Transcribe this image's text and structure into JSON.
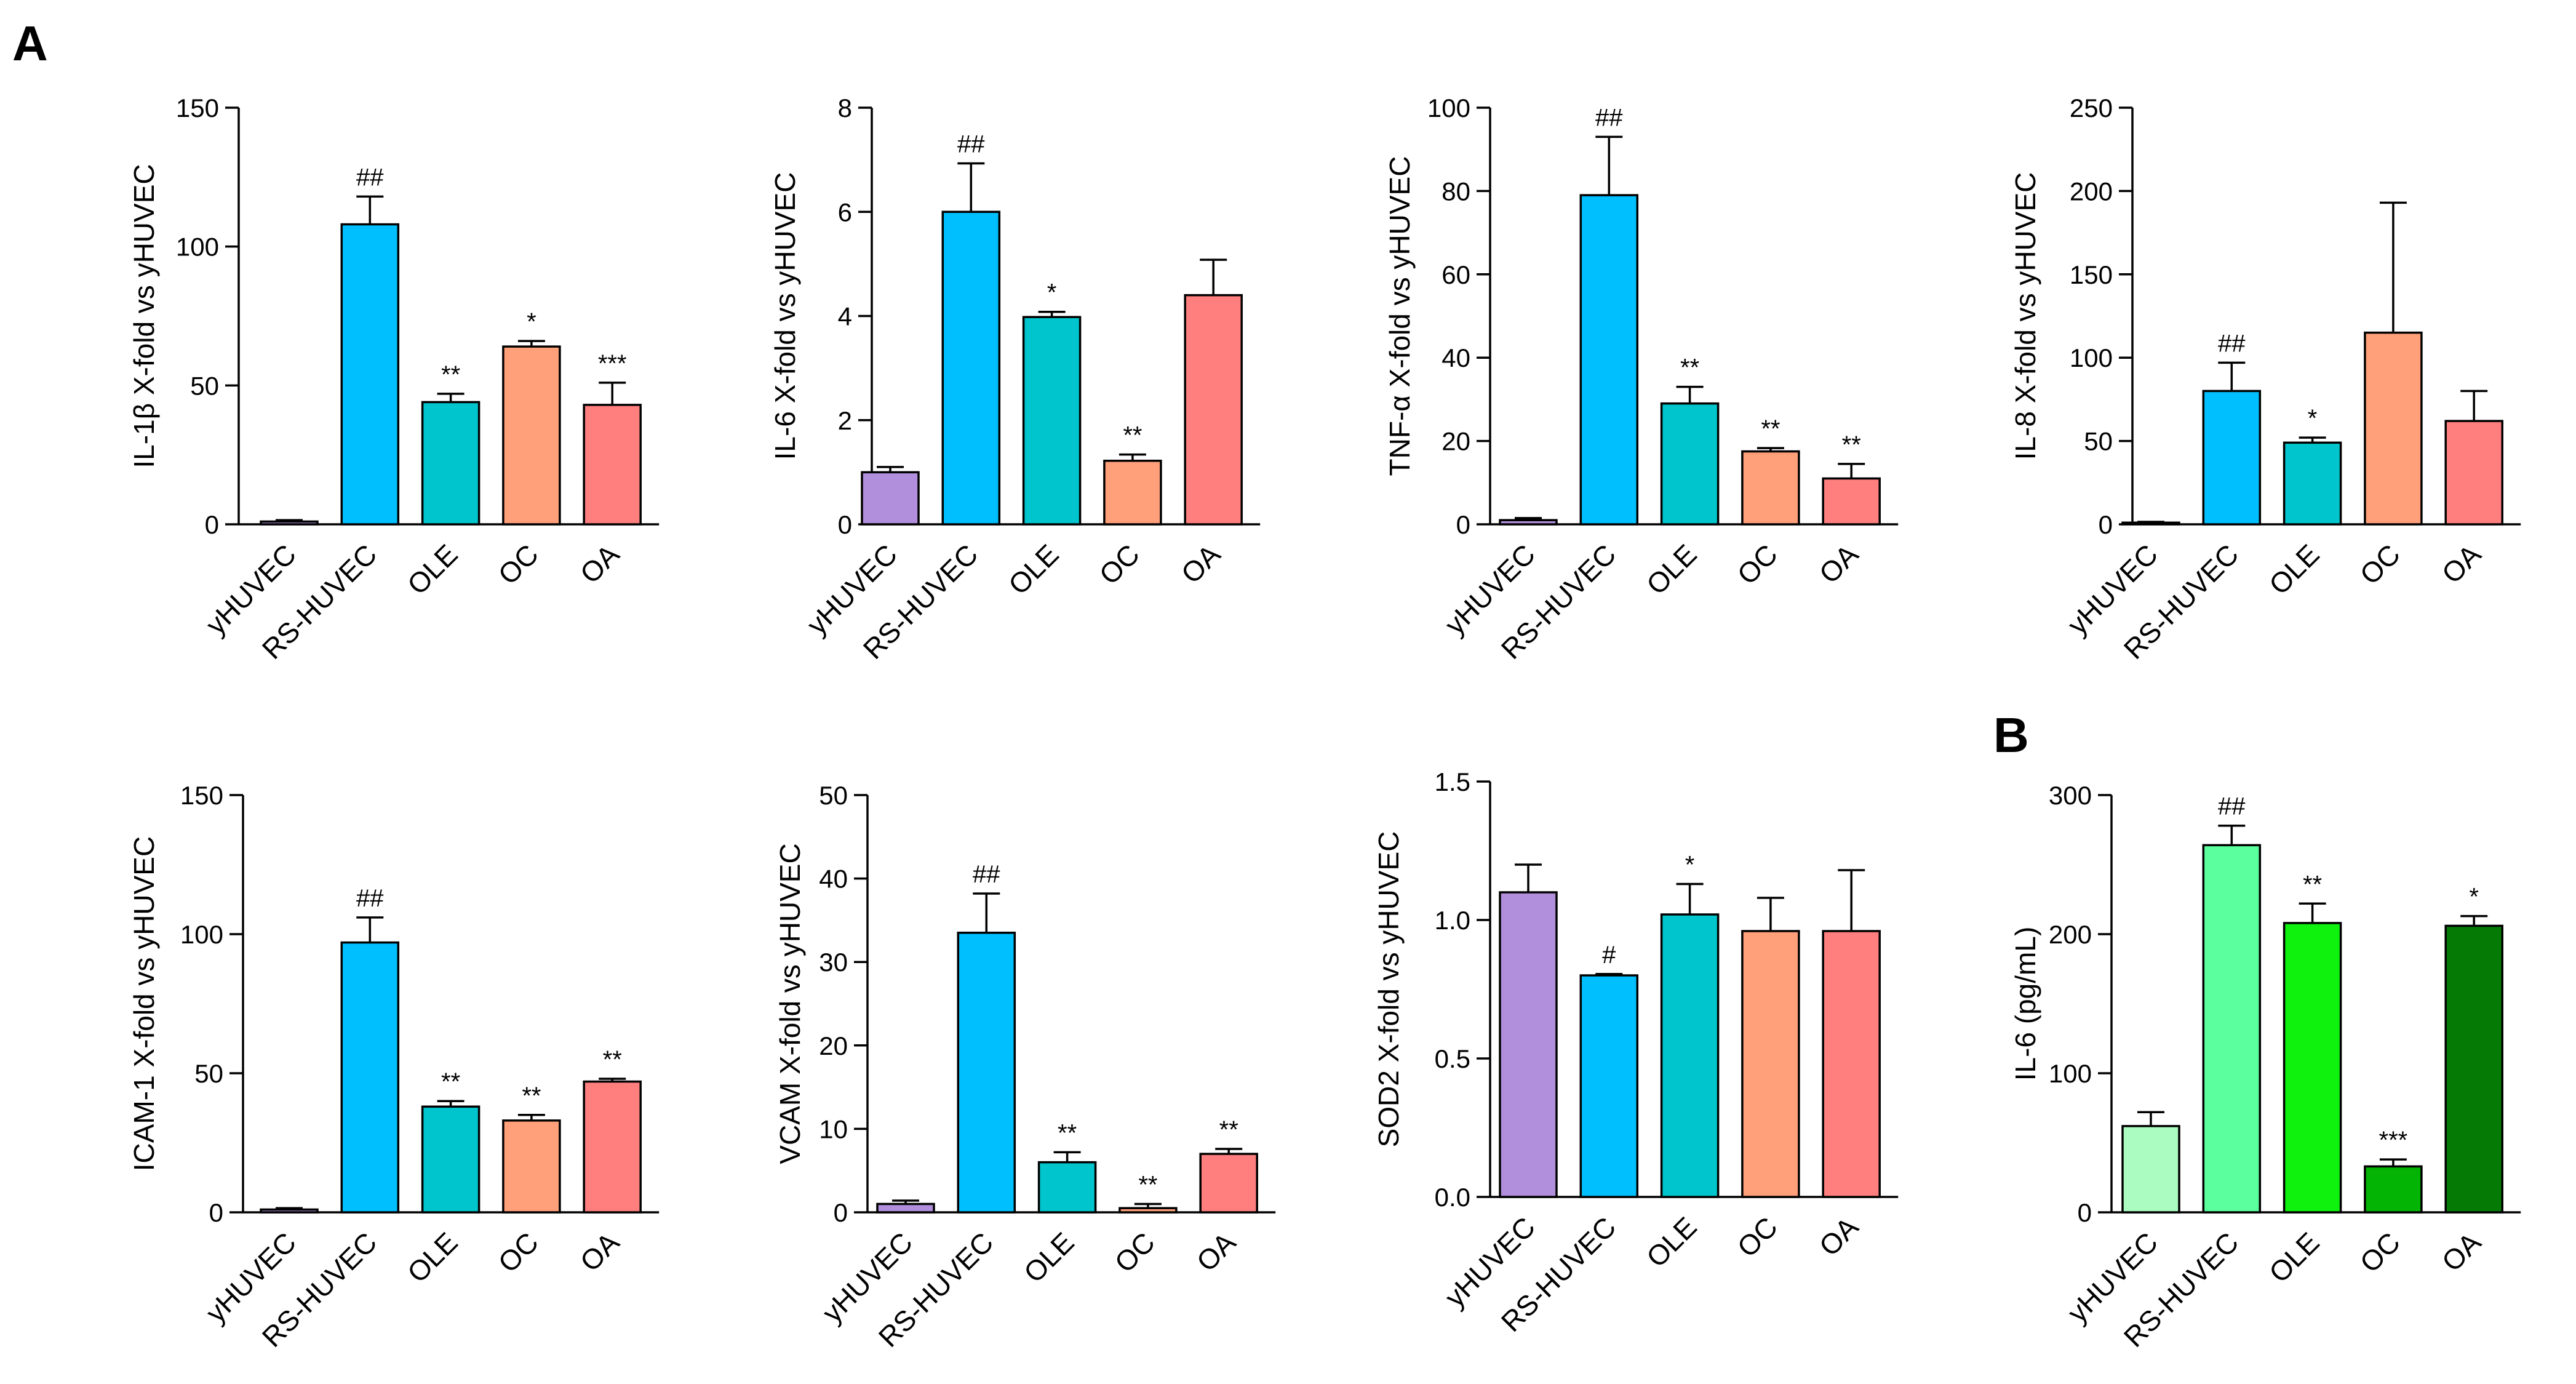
{
  "panel_labels": [
    "A",
    "B"
  ],
  "chart_data": [
    {
      "type": "bar",
      "panel": "A",
      "categories": [
        "yHUVEC",
        "RS-HUVEC",
        "OLE",
        "OC",
        "OA"
      ],
      "values": [
        1,
        108,
        44,
        64,
        43
      ],
      "errors": [
        0.5,
        10,
        3,
        2,
        8
      ],
      "significance": [
        "",
        "##",
        "**",
        "*",
        "***"
      ],
      "colors": [
        "#b18fdc",
        "#00bfff",
        "#00c5cd",
        "#ffa07a",
        "#ff7f7f"
      ],
      "ylabel": "IL-1β X-fold vs yHUVEC",
      "ylim": [
        0,
        150
      ],
      "yticks": [
        0,
        50,
        100,
        150
      ],
      "ytick_labels": [
        "0",
        "50",
        "100",
        "150"
      ]
    },
    {
      "type": "bar",
      "panel": "A",
      "categories": [
        "yHUVEC",
        "RS-HUVEC",
        "OLE",
        "OC",
        "OA"
      ],
      "values": [
        1.0,
        6.0,
        3.98,
        1.22,
        4.4
      ],
      "errors": [
        0.1,
        0.93,
        0.1,
        0.12,
        0.68
      ],
      "significance": [
        "",
        "##",
        "*",
        "**",
        ""
      ],
      "colors": [
        "#b18fdc",
        "#00bfff",
        "#00c5cd",
        "#ffa07a",
        "#ff7f7f"
      ],
      "ylabel": "IL-6 X-fold vs yHUVEC",
      "ylim": [
        0,
        8
      ],
      "yticks": [
        0,
        2,
        4,
        6,
        8
      ],
      "ytick_labels": [
        "0",
        "2",
        "4",
        "6",
        "8"
      ]
    },
    {
      "type": "bar",
      "panel": "A",
      "categories": [
        "yHUVEC",
        "RS-HUVEC",
        "OLE",
        "OC",
        "OA"
      ],
      "values": [
        1,
        79,
        29,
        17.5,
        11
      ],
      "errors": [
        0.5,
        14,
        4,
        0.8,
        3.5
      ],
      "significance": [
        "",
        "##",
        "**",
        "**",
        "**"
      ],
      "colors": [
        "#b18fdc",
        "#00bfff",
        "#00c5cd",
        "#ffa07a",
        "#ff7f7f"
      ],
      "ylabel": "TNF-α X-fold vs yHUVEC",
      "ylim": [
        0,
        100
      ],
      "yticks": [
        0,
        20,
        40,
        60,
        80,
        100
      ],
      "ytick_labels": [
        "0",
        "20",
        "40",
        "60",
        "80",
        "100"
      ]
    },
    {
      "type": "bar",
      "panel": "A",
      "categories": [
        "yHUVEC",
        "RS-HUVEC",
        "OLE",
        "OC",
        "OA"
      ],
      "values": [
        1,
        80,
        49,
        115,
        62
      ],
      "errors": [
        0.5,
        17,
        3,
        78,
        18
      ],
      "significance": [
        "",
        "##",
        "*",
        "",
        ""
      ],
      "colors": [
        "#b18fdc",
        "#00bfff",
        "#00c5cd",
        "#ffa07a",
        "#ff7f7f"
      ],
      "ylabel": "IL-8 X-fold vs yHUVEC",
      "ylim": [
        0,
        250
      ],
      "yticks": [
        0,
        50,
        100,
        150,
        200,
        250
      ],
      "ytick_labels": [
        "0",
        "50",
        "100",
        "150",
        "200",
        "250"
      ]
    },
    {
      "type": "bar",
      "panel": "A",
      "categories": [
        "yHUVEC",
        "RS-HUVEC",
        "OLE",
        "OC",
        "OA"
      ],
      "values": [
        1,
        97,
        38,
        33,
        47
      ],
      "errors": [
        0.5,
        9,
        2,
        2,
        1
      ],
      "significance": [
        "",
        "##",
        "**",
        "**",
        "**"
      ],
      "colors": [
        "#b18fdc",
        "#00bfff",
        "#00c5cd",
        "#ffa07a",
        "#ff7f7f"
      ],
      "ylabel": "ICAM-1 X-fold vs yHUVEC",
      "ylim": [
        0,
        150
      ],
      "yticks": [
        0,
        50,
        100,
        150
      ],
      "ytick_labels": [
        "0",
        "50",
        "100",
        "150"
      ]
    },
    {
      "type": "bar",
      "panel": "A",
      "categories": [
        "yHUVEC",
        "RS-HUVEC",
        "OLE",
        "OC",
        "OA"
      ],
      "values": [
        1,
        33.5,
        6,
        0.5,
        7
      ],
      "errors": [
        0.4,
        4.7,
        1.2,
        0.5,
        0.6
      ],
      "significance": [
        "",
        "##",
        "**",
        "**",
        "**"
      ],
      "colors": [
        "#b18fdc",
        "#00bfff",
        "#00c5cd",
        "#ffa07a",
        "#ff7f7f"
      ],
      "ylabel": "VCAM X-fold vs yHUVEC",
      "ylim": [
        0,
        50
      ],
      "yticks": [
        0,
        10,
        20,
        30,
        40,
        50
      ],
      "ytick_labels": [
        "0",
        "10",
        "20",
        "30",
        "40",
        "50"
      ]
    },
    {
      "type": "bar",
      "panel": "A",
      "categories": [
        "yHUVEC",
        "RS-HUVEC",
        "OLE",
        "OC",
        "OA"
      ],
      "values": [
        1.1,
        0.8,
        1.02,
        0.96,
        0.96
      ],
      "errors": [
        0.1,
        0.005,
        0.11,
        0.12,
        0.22
      ],
      "significance": [
        "",
        "#",
        "*",
        "",
        ""
      ],
      "colors": [
        "#b18fdc",
        "#00bfff",
        "#00c5cd",
        "#ffa07a",
        "#ff7f7f"
      ],
      "ylabel": "SOD2 X-fold vs yHUVEC",
      "ylim": [
        0,
        1.5
      ],
      "yticks": [
        0,
        0.5,
        1.0,
        1.5
      ],
      "ytick_labels": [
        "0.0",
        "0.5",
        "1.0",
        "1.5"
      ]
    },
    {
      "type": "bar",
      "panel": "B",
      "categories": [
        "yHUVEC",
        "RS-HUVEC",
        "OLE",
        "OC",
        "OA"
      ],
      "values": [
        62,
        264,
        208,
        33,
        206
      ],
      "errors": [
        10,
        14,
        14,
        5,
        7
      ],
      "significance": [
        "",
        "##",
        "**",
        "***",
        "*"
      ],
      "colors": [
        "#abfcc0",
        "#5cff9d",
        "#0ef20e",
        "#04b404",
        "#057a05"
      ],
      "ylabel": "IL-6 (pg/mL)",
      "ylim": [
        0,
        300
      ],
      "yticks": [
        0,
        100,
        200,
        300
      ],
      "ytick_labels": [
        "0",
        "100",
        "200",
        "300"
      ]
    }
  ]
}
